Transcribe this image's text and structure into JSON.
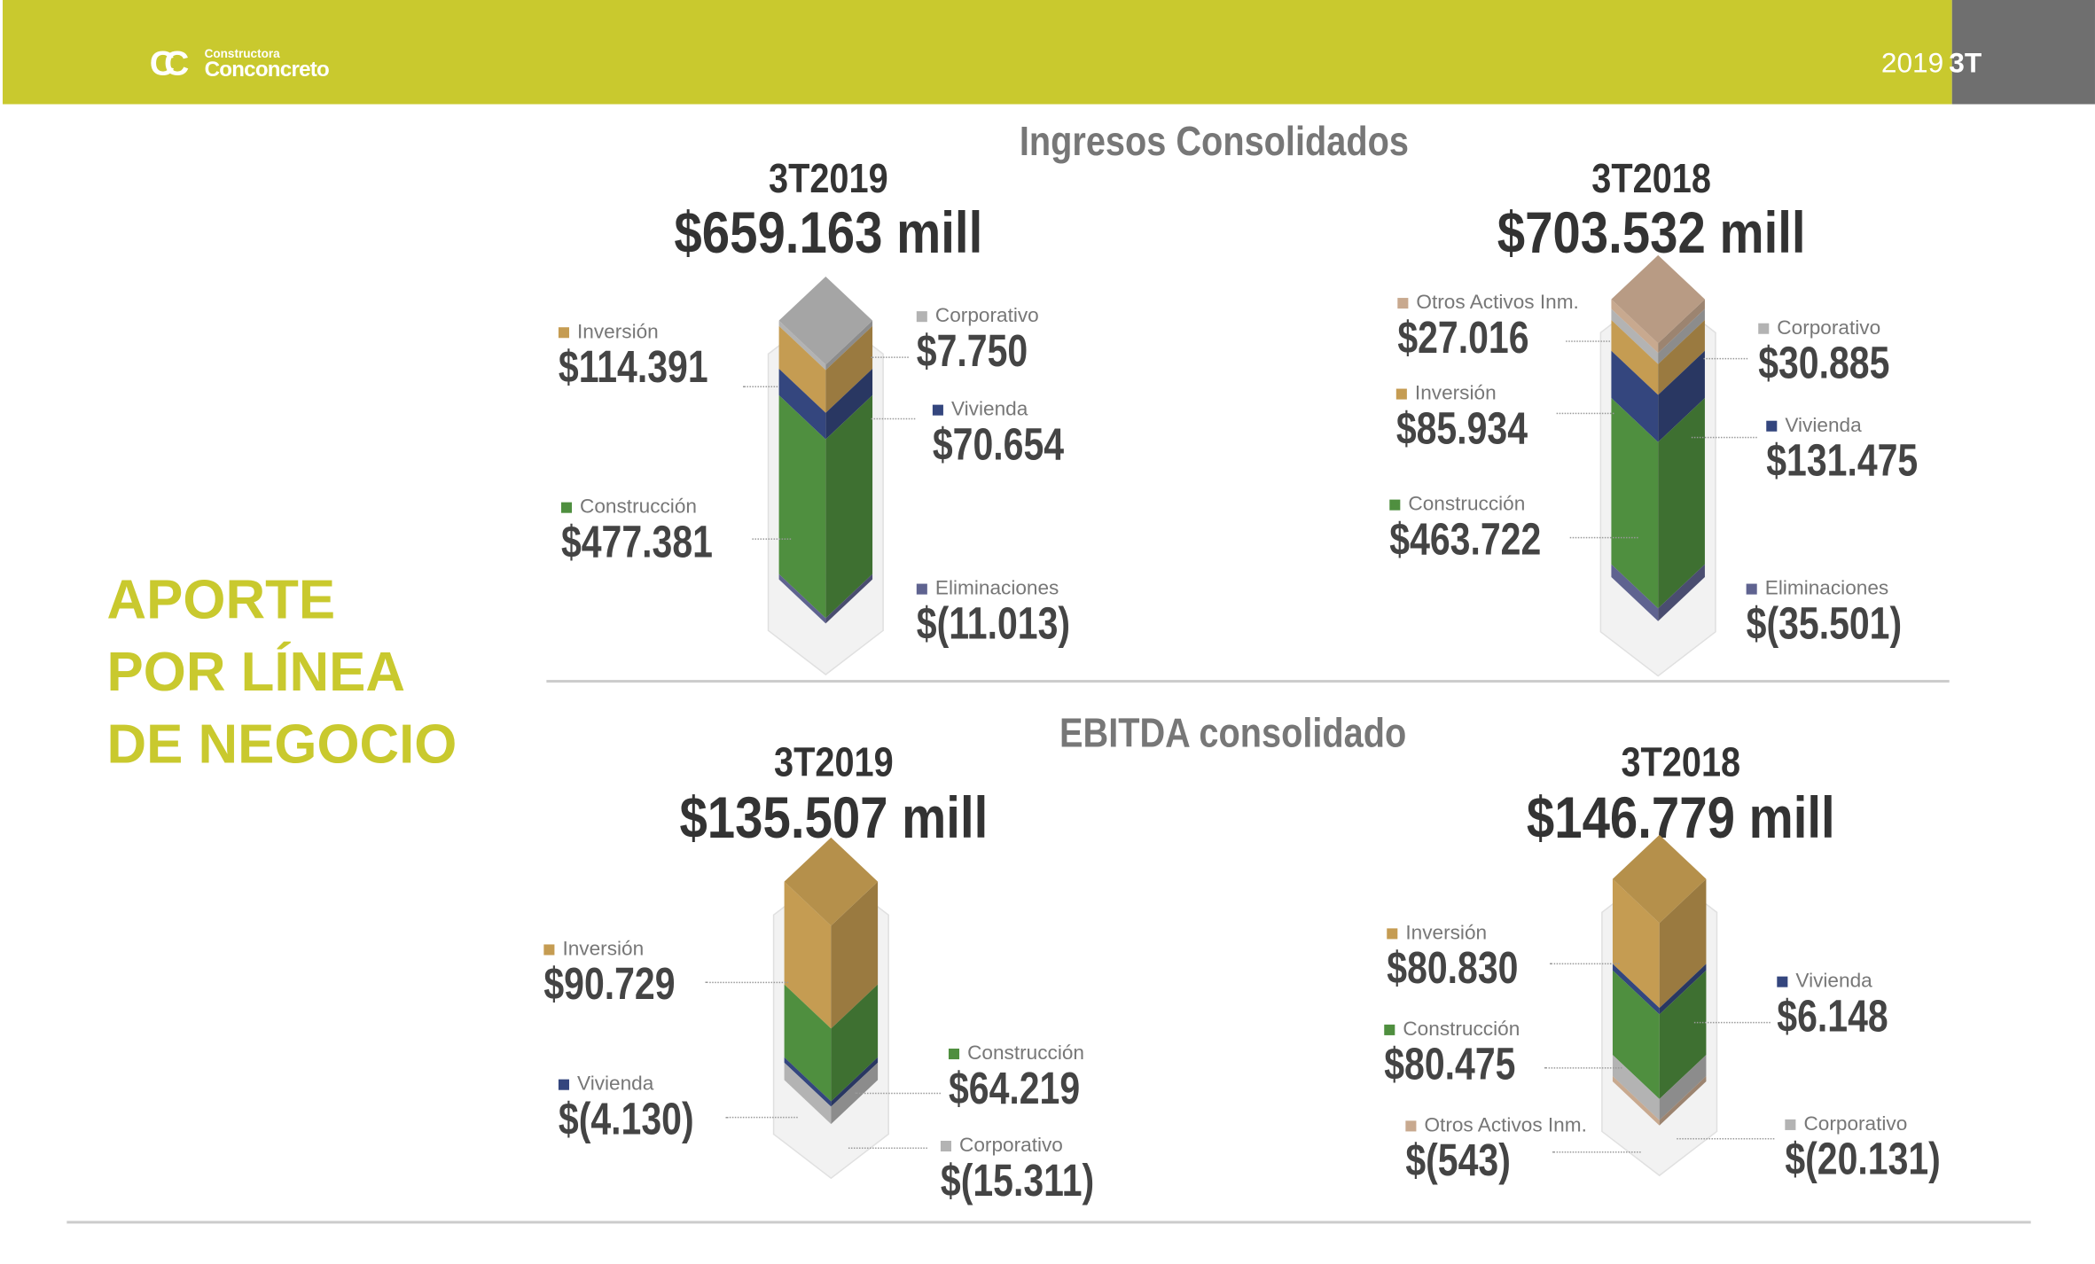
{
  "header": {
    "logo_small": "Constructora",
    "logo_big": "Conconcreto",
    "logo_mark": "CC",
    "year": "2019",
    "quarter": "3T"
  },
  "side_title": [
    "APORTE",
    "POR LÍNEA",
    "DE NEGOCIO"
  ],
  "colors": {
    "construccion": "#4f8f3f",
    "inversion": "#c59c52",
    "vivienda": "#34467e",
    "corporativo": "#b3b3b3",
    "eliminaciones": "#5f6390",
    "otros": "#c8a98f",
    "accent": "#c9c92e"
  },
  "chart_data": [
    {
      "type": "bar",
      "title": "Ingresos Consolidados",
      "period": "3T2019",
      "total": "$659.163 mill",
      "segments": [
        {
          "name": "Corporativo",
          "label": "$7.750",
          "value": 7750,
          "key": "corporativo"
        },
        {
          "name": "Inversión",
          "label": "$114.391",
          "value": 114391,
          "key": "inversion"
        },
        {
          "name": "Vivienda",
          "label": "$70.654",
          "value": 70654,
          "key": "vivienda"
        },
        {
          "name": "Construcción",
          "label": "$477.381",
          "value": 477381,
          "key": "construccion"
        },
        {
          "name": "Eliminaciones",
          "label": "$(11.013)",
          "value": -11013,
          "key": "eliminaciones"
        }
      ]
    },
    {
      "type": "bar",
      "title": "Ingresos Consolidados",
      "period": "3T2018",
      "total": "$703.532 mill",
      "segments": [
        {
          "name": "Otros Activos Inm.",
          "label": "$27.016",
          "value": 27016,
          "key": "otros"
        },
        {
          "name": "Corporativo",
          "label": "$30.885",
          "value": 30885,
          "key": "corporativo"
        },
        {
          "name": "Inversión",
          "label": "$85.934",
          "value": 85934,
          "key": "inversion"
        },
        {
          "name": "Vivienda",
          "label": "$131.475",
          "value": 131475,
          "key": "vivienda"
        },
        {
          "name": "Construcción",
          "label": "$463.722",
          "value": 463722,
          "key": "construccion"
        },
        {
          "name": "Eliminaciones",
          "label": "$(35.501)",
          "value": -35501,
          "key": "eliminaciones"
        }
      ]
    },
    {
      "type": "bar",
      "title": "EBITDA consolidado",
      "period": "3T2019",
      "total": "$135.507 mill",
      "segments": [
        {
          "name": "Inversión",
          "label": "$90.729",
          "value": 90729,
          "key": "inversion"
        },
        {
          "name": "Construcción",
          "label": "$64.219",
          "value": 64219,
          "key": "construccion"
        },
        {
          "name": "Vivienda",
          "label": "$(4.130)",
          "value": -4130,
          "key": "vivienda"
        },
        {
          "name": "Corporativo",
          "label": "$(15.311)",
          "value": -15311,
          "key": "corporativo"
        }
      ]
    },
    {
      "type": "bar",
      "title": "EBITDA consolidado",
      "period": "3T2018",
      "total": "$146.779 mill",
      "segments": [
        {
          "name": "Inversión",
          "label": "$80.830",
          "value": 80830,
          "key": "inversion"
        },
        {
          "name": "Vivienda",
          "label": "$6.148",
          "value": 6148,
          "key": "vivienda"
        },
        {
          "name": "Construcción",
          "label": "$80.475",
          "value": 80475,
          "key": "construccion"
        },
        {
          "name": "Corporativo",
          "label": "$(20.131)",
          "value": -20131,
          "key": "corporativo"
        },
        {
          "name": "Otros Activos Inm.",
          "label": "$(543)",
          "value": -543,
          "key": "otros"
        }
      ]
    }
  ]
}
